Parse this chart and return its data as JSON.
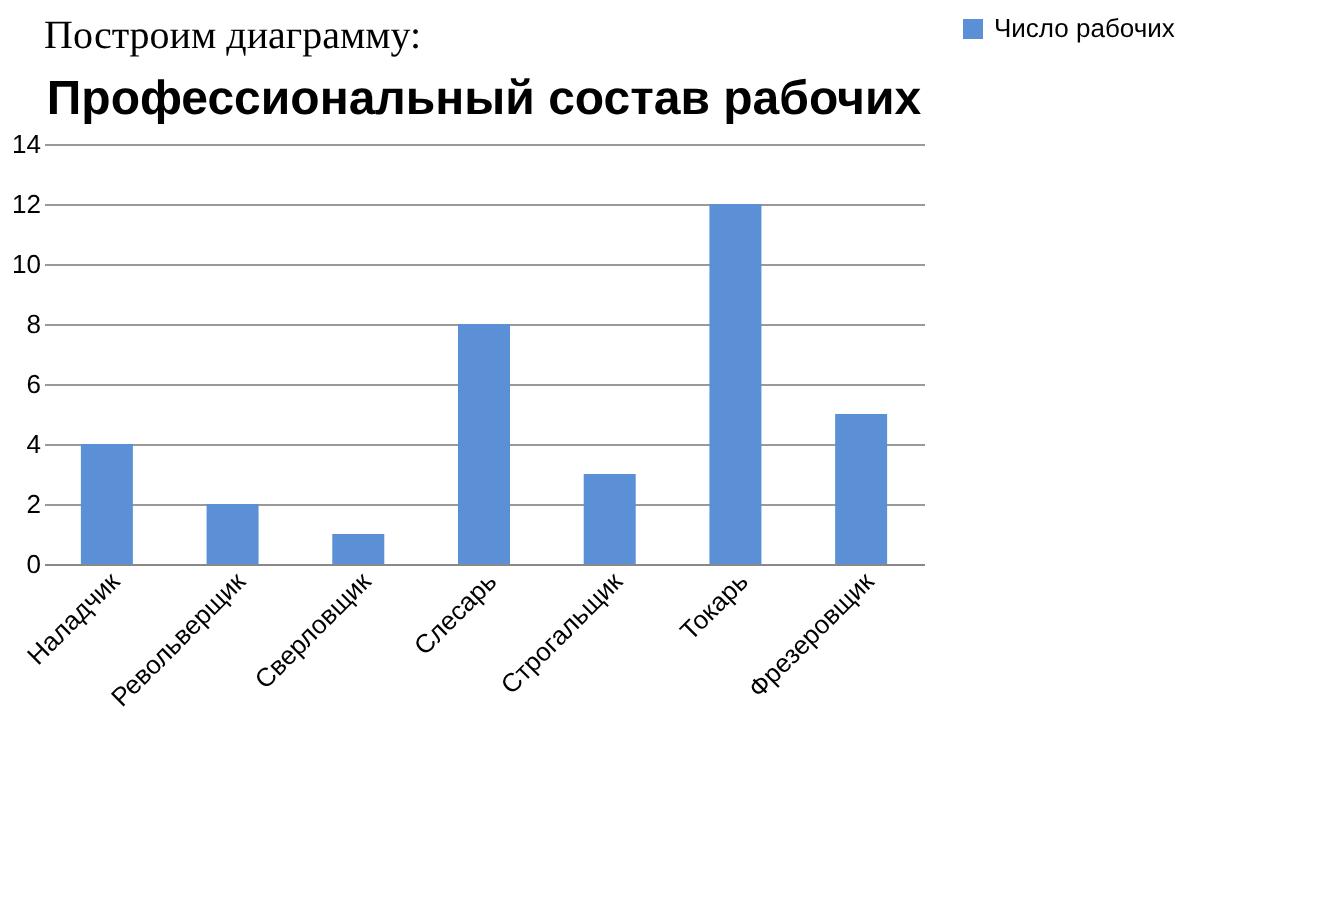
{
  "chart_data": {
    "type": "bar",
    "title": "Профессиональный состав рабочих",
    "annotations": [
      "Построим диаграмму:"
    ],
    "categories": [
      "Наладчик",
      "Револьверщик",
      "Сверловщик",
      "Слесарь",
      "Строгальщик",
      "Токарь",
      "Фрезеровщик"
    ],
    "series": [
      {
        "name": "Число рабочих",
        "color": "#5b8fd6",
        "values": [
          4,
          2,
          1,
          8,
          3,
          12,
          5
        ]
      }
    ],
    "ylim": [
      0,
      14
    ],
    "yticks": [
      0,
      2,
      4,
      6,
      8,
      10,
      12,
      14
    ],
    "grid": "y",
    "legend": "right"
  }
}
